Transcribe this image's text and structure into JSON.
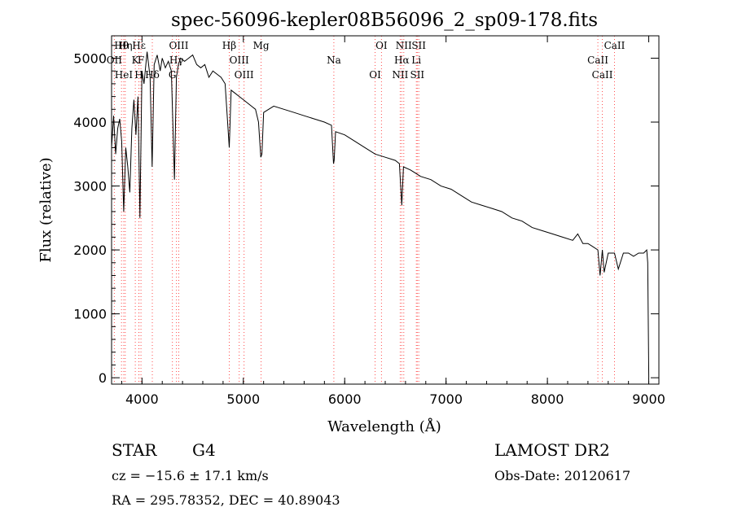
{
  "chart_data": {
    "type": "line",
    "title": "spec-56096-kepler08B56096_2_sp09-178.fits",
    "xlabel": "Wavelength (Å)",
    "ylabel": "Flux (relative)",
    "xlim": [
      3700,
      9100
    ],
    "ylim": [
      -100,
      5350
    ],
    "xticks": [
      4000,
      5000,
      6000,
      7000,
      8000,
      9000
    ],
    "yticks": [
      0,
      1000,
      2000,
      3000,
      4000,
      5000
    ],
    "grid": false,
    "series": [
      {
        "x": [
          3700,
          3720,
          3740,
          3760,
          3780,
          3800,
          3820,
          3840,
          3860,
          3880,
          3900,
          3920,
          3940,
          3960,
          3980,
          4000,
          4020,
          4050,
          4080,
          4100,
          4120,
          4150,
          4180,
          4200,
          4230,
          4260,
          4290,
          4320,
          4340,
          4360,
          4380,
          4420,
          4460,
          4500,
          4540,
          4580,
          4620,
          4660,
          4700,
          4740,
          4780,
          4820,
          4861,
          4880,
          4920,
          4960,
          5000,
          5040,
          5080,
          5120,
          5150,
          5172,
          5183,
          5200,
          5250,
          5300,
          5400,
          5500,
          5600,
          5700,
          5800,
          5870,
          5890,
          5896,
          5910,
          6000,
          6100,
          6200,
          6300,
          6400,
          6500,
          6540,
          6563,
          6580,
          6650,
          6750,
          6850,
          6950,
          7050,
          7150,
          7250,
          7350,
          7450,
          7550,
          7650,
          7750,
          7850,
          7950,
          8050,
          8150,
          8250,
          8300,
          8350,
          8400,
          8450,
          8498,
          8520,
          8542,
          8560,
          8600,
          8662,
          8700,
          8750,
          8800,
          8850,
          8900,
          8950,
          8980,
          8990,
          9000
        ],
        "y": [
          3600,
          4100,
          3500,
          3900,
          4050,
          3700,
          2600,
          3600,
          3300,
          2900,
          3900,
          4350,
          3800,
          4400,
          2500,
          4800,
          4600,
          5100,
          4700,
          3300,
          4900,
          5050,
          4800,
          5000,
          4850,
          4950,
          4800,
          3100,
          4700,
          4900,
          5000,
          4950,
          5000,
          5050,
          4900,
          4850,
          4900,
          4700,
          4800,
          4750,
          4700,
          4600,
          3600,
          4500,
          4450,
          4400,
          4350,
          4300,
          4250,
          4200,
          4000,
          3450,
          3500,
          4150,
          4200,
          4250,
          4200,
          4150,
          4100,
          4050,
          4000,
          3950,
          3350,
          3400,
          3850,
          3800,
          3700,
          3600,
          3500,
          3450,
          3400,
          3350,
          2700,
          3300,
          3250,
          3150,
          3100,
          3000,
          2950,
          2850,
          2750,
          2700,
          2650,
          2600,
          2500,
          2450,
          2350,
          2300,
          2250,
          2200,
          2150,
          2250,
          2100,
          2100,
          2050,
          2000,
          1600,
          2000,
          1650,
          1950,
          1950,
          1700,
          1950,
          1950,
          1900,
          1950,
          1950,
          2000,
          1800,
          0
        ]
      }
    ],
    "spectral_lines": [
      {
        "label": "Hθ",
        "wl": 3798
      },
      {
        "label": "OII",
        "wl": 3727
      },
      {
        "label": "HeI",
        "wl": 3820
      },
      {
        "label": "Hη",
        "wl": 3835
      },
      {
        "label": "K",
        "wl": 3934
      },
      {
        "label": "H",
        "wl": 3969
      },
      {
        "label": "Hε",
        "wl": 3970
      },
      {
        "label": "F",
        "wl": 3990
      },
      {
        "label": "Hδ",
        "wl": 4102
      },
      {
        "label": "OIII",
        "wl": 4363
      },
      {
        "label": "Hγ",
        "wl": 4340
      },
      {
        "label": "G",
        "wl": 4300
      },
      {
        "label": "Hβ",
        "wl": 4861
      },
      {
        "label": "OIII",
        "wl": 4959
      },
      {
        "label": "OIII",
        "wl": 5007
      },
      {
        "label": "Mg",
        "wl": 5175
      },
      {
        "label": "Na",
        "wl": 5893
      },
      {
        "label": "OI",
        "wl": 6300
      },
      {
        "label": "OI",
        "wl": 6363
      },
      {
        "label": "Hα",
        "wl": 6563
      },
      {
        "label": "NII",
        "wl": 6548
      },
      {
        "label": "NII",
        "wl": 6583
      },
      {
        "label": "Li",
        "wl": 6707
      },
      {
        "label": "SII",
        "wl": 6716
      },
      {
        "label": "SII",
        "wl": 6731
      },
      {
        "label": "CaII",
        "wl": 8498
      },
      {
        "label": "CaII",
        "wl": 8542
      },
      {
        "label": "CaII",
        "wl": 8662
      }
    ]
  },
  "info": {
    "object_class": "STAR",
    "subclass": "G4",
    "redshift": "cz = −15.6 ± 17.1 km/s",
    "coords": "RA = 295.78352, DEC =  40.89043",
    "survey": "LAMOST DR2",
    "obs_date": "Obs-Date: 20120617"
  }
}
